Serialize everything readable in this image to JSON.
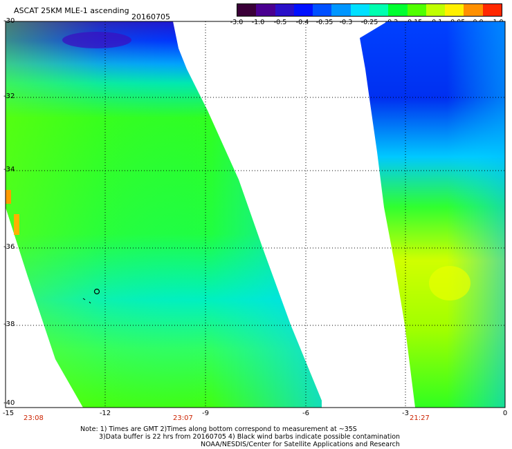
{
  "header": {
    "title": "ASCAT 25KM MLE-1 ascending",
    "date": "20160705"
  },
  "colorbar": {
    "labels": [
      "-3.0",
      "-1.0",
      "-0.5",
      "-0.4",
      "-0.35",
      "-0.3",
      "-0.25",
      "-0.2",
      "-0.15",
      "-0.1",
      "-0.05",
      "0.0",
      "1.0"
    ],
    "colors": [
      "#3a0038",
      "#4a0090",
      "#2a10c8",
      "#0010ff",
      "#0050ff",
      "#0096ff",
      "#00e0ff",
      "#00ffb0",
      "#00ff30",
      "#50ff00",
      "#c0ff00",
      "#fff000",
      "#ff9000",
      "#ff2800"
    ]
  },
  "map": {
    "y_ticks": [
      "-30",
      "-32",
      "-34",
      "-36",
      "-38",
      "-40"
    ],
    "x_ticks": [
      "-15",
      "-12",
      "-9",
      "-6",
      "-3",
      "0"
    ],
    "times": [
      "23:08",
      "23:07",
      "21:27"
    ]
  },
  "footer": {
    "note_line1": "Note: 1) Times are GMT 2)Times along bottom correspond to measurement at ~35S",
    "note_line2": "3)Data buffer is 22 hrs from 20160705 4) Black wind barbs indicate possible contamination",
    "credit": "NOAA/NESDIS/Center for Satellite Applications and Research"
  }
}
